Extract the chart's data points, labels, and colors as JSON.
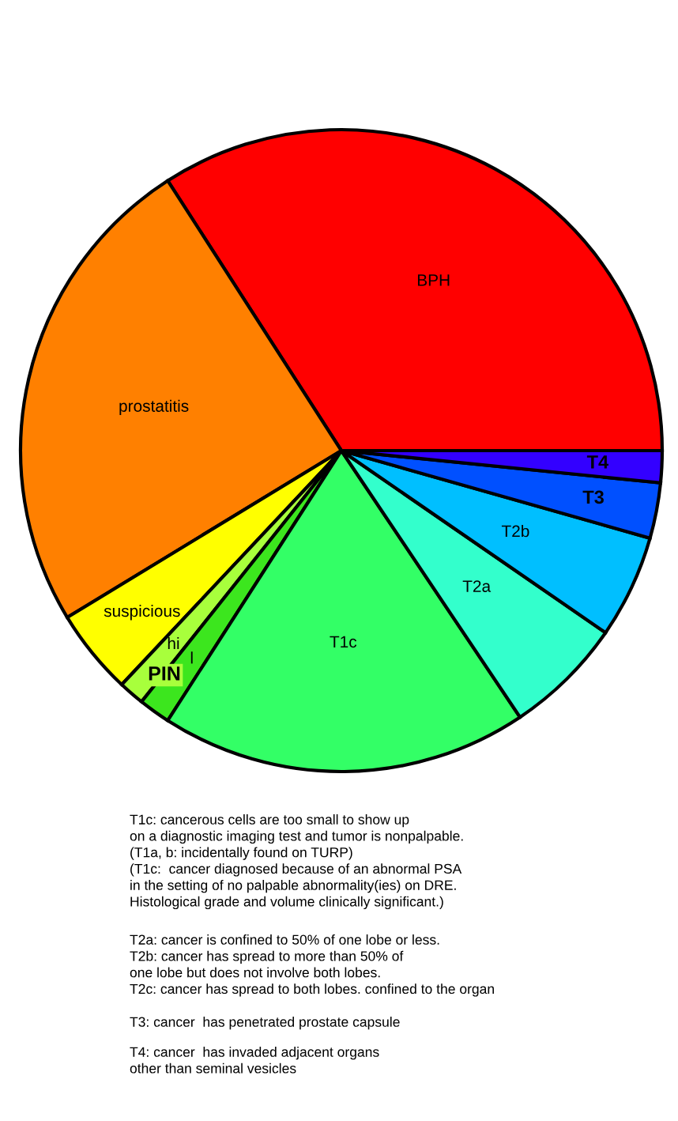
{
  "chart_data": {
    "type": "pie",
    "categories": [
      "BPH",
      "prostatitis",
      "suspicious",
      "hi",
      "l",
      "T1c",
      "T2a",
      "T2b",
      "T3",
      "T4"
    ],
    "values": [
      34.1,
      24.6,
      4.3,
      1.3,
      1.6,
      18.5,
      6.0,
      5.2,
      2.8,
      1.6
    ],
    "colors": [
      "#ff0000",
      "#ff8000",
      "#ffff00",
      "#a8ff3c",
      "#3ce61e",
      "#33ff66",
      "#33ffcc",
      "#00bfff",
      "#0050ff",
      "#3300ff"
    ],
    "annotations": [
      "PIN",
      "T1c: cancerous cells are too small to show up\non a diagnostic imaging test and tumor is nonpalpable.\n(T1a, b: incidentally found on TURP)\n(T1c:  cancer diagnosed because of an abnormal PSA\nin the setting of no palpable abnormality(ies) on DRE.\nHistological grade and volume clinically significant.)",
      "T2a: cancer is confined to 50% of one lobe or less.\nT2b: cancer has spread to more than 50% of\none lobe but does not involve both lobes.\nT2c: cancer has spread to both lobes. confined to the organ",
      "T3: cancer  has penetrated prostate capsule",
      "T4: cancer  has invaded adjacent organs\nother than seminal vesicles"
    ]
  }
}
